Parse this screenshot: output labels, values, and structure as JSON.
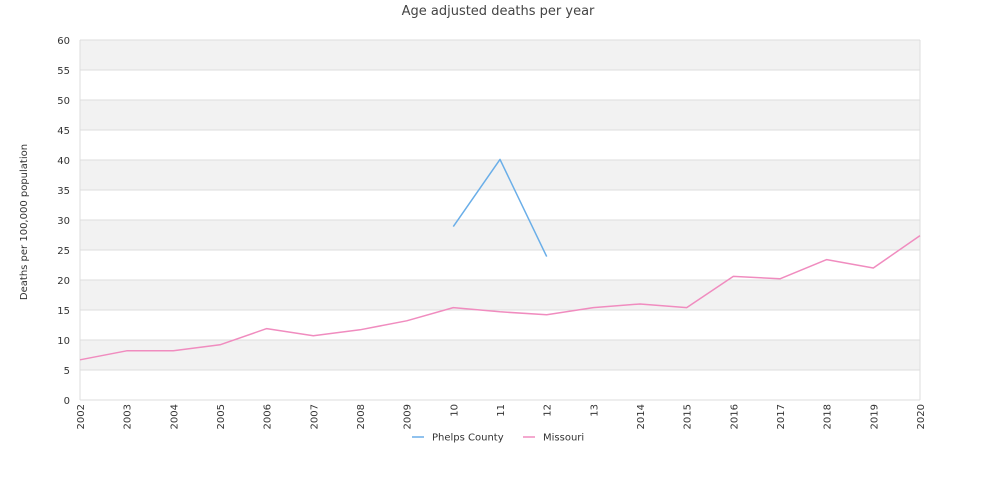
{
  "chart_data": {
    "type": "line",
    "title": "Age adjusted deaths per year",
    "xlabel": "",
    "ylabel": "Deaths per 100,000 population",
    "x": [
      "2002",
      "2003",
      "2004",
      "2005",
      "2006",
      "2007",
      "2008",
      "2009",
      "2010",
      "2011",
      "2012",
      "2013",
      "2014",
      "2015",
      "2016",
      "2017",
      "2018",
      "2019",
      "2020"
    ],
    "x_tick_labels": [
      "2002",
      "2003",
      "2004",
      "2005",
      "2006",
      "2007",
      "2008",
      "2009",
      "10",
      "11",
      "12",
      "13",
      "2014",
      "2015",
      "2016",
      "2017",
      "2018",
      "2019",
      "2020"
    ],
    "ylim": [
      0,
      60
    ],
    "y_ticks": [
      0,
      5,
      10,
      15,
      20,
      25,
      30,
      35,
      40,
      45,
      50,
      55,
      60
    ],
    "grid": true,
    "legend_position": "bottom-center",
    "series": [
      {
        "name": "Phelps County",
        "color": "#6aaee8",
        "values": [
          null,
          null,
          null,
          null,
          null,
          null,
          null,
          null,
          28.9,
          40.1,
          23.9,
          null,
          null,
          null,
          null,
          null,
          null,
          null,
          null
        ]
      },
      {
        "name": "Missouri",
        "color": "#f08cbf",
        "values": [
          6.7,
          8.2,
          8.2,
          9.2,
          11.9,
          10.7,
          11.7,
          13.2,
          15.4,
          14.7,
          14.2,
          15.4,
          16.0,
          15.4,
          20.6,
          20.2,
          23.4,
          22.0,
          27.4
        ]
      }
    ]
  }
}
